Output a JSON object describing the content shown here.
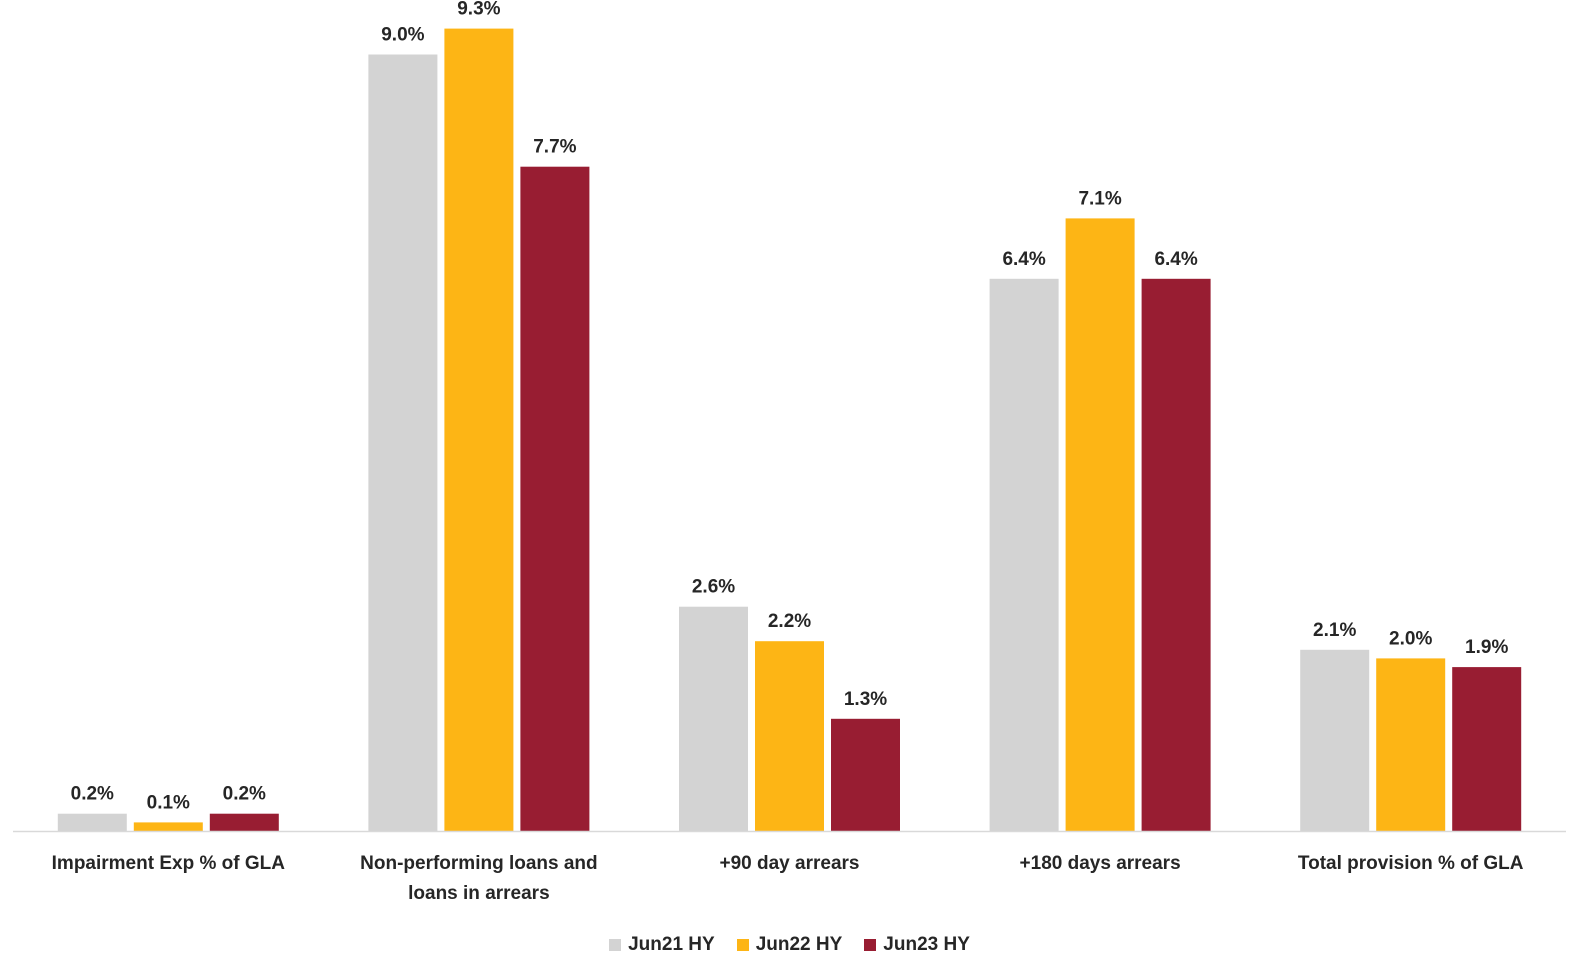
{
  "chart_data": {
    "type": "bar",
    "categories": [
      "Impairment Exp % of GLA",
      "Non-performing loans and loans in arrears",
      "+90 day arrears",
      "+180 days arrears",
      "Total provision % of GLA"
    ],
    "category_lines": [
      [
        "Impairment Exp % of GLA"
      ],
      [
        "Non-performing loans and",
        "loans in arrears"
      ],
      [
        "+90 day arrears"
      ],
      [
        "+180 days arrears"
      ],
      [
        "Total provision % of GLA"
      ]
    ],
    "series": [
      {
        "name": "Jun21 HY",
        "color": "#d3d3d3",
        "values": [
          0.2,
          9.0,
          2.6,
          6.4,
          2.1
        ],
        "labels": [
          "0.2%",
          "9.0%",
          "2.6%",
          "6.4%",
          "2.1%"
        ]
      },
      {
        "name": "Jun22 HY",
        "color": "#fdb515",
        "values": [
          0.1,
          9.3,
          2.2,
          7.1,
          2.0
        ],
        "labels": [
          "0.1%",
          "9.3%",
          "2.2%",
          "7.1%",
          "2.0%"
        ]
      },
      {
        "name": "Jun23 HY",
        "color": "#981d32",
        "values": [
          0.2,
          7.7,
          1.3,
          6.4,
          1.9
        ],
        "labels": [
          "0.2%",
          "7.7%",
          "1.3%",
          "6.4%",
          "1.9%"
        ]
      }
    ],
    "ylim": [
      0,
      9.4
    ],
    "grid": false,
    "legend_position": "bottom-center",
    "axis_color": "#d9d9d9"
  }
}
